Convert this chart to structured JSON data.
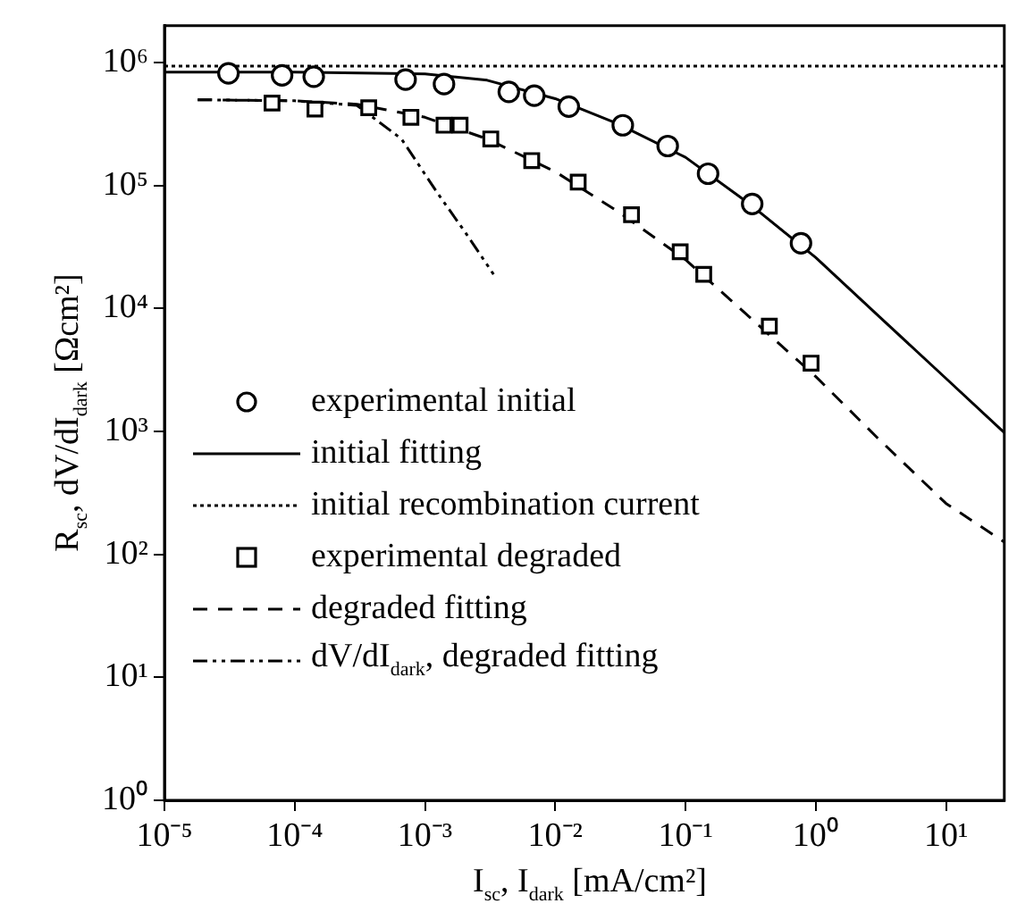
{
  "chart_data": {
    "type": "line",
    "xlabel": "I$_{sc}$, I$_{dark}$ [mA/cm²]",
    "ylabel": "R$_{sc}$, dV/dI$_{dark}$ [Ωcm²]",
    "log": "xy",
    "grid": false,
    "legend": "bottom left",
    "xlim": [
      1e-05,
      28
    ],
    "ylim": [
      1,
      2000000
    ],
    "xticks": [
      {
        "value": 1e-05,
        "label": "10⁻⁵"
      },
      {
        "value": 0.0001,
        "label": "10⁻⁴"
      },
      {
        "value": 0.001,
        "label": "10⁻³"
      },
      {
        "value": 0.01,
        "label": "10⁻²"
      },
      {
        "value": 0.1,
        "label": "10⁻¹"
      },
      {
        "value": 1,
        "label": "10⁰"
      },
      {
        "value": 10,
        "label": "10¹"
      }
    ],
    "yticks": [
      {
        "value": 1,
        "label": "10⁰"
      },
      {
        "value": 10,
        "label": "10¹"
      },
      {
        "value": 100,
        "label": "10²"
      },
      {
        "value": 1000,
        "label": "10³"
      },
      {
        "value": 10000,
        "label": "10⁴"
      },
      {
        "value": 100000,
        "label": "10⁵"
      },
      {
        "value": 1000000,
        "label": "10⁶"
      }
    ],
    "series": [
      {
        "name": "experimental initial",
        "type": "scatter",
        "marker": "circle",
        "color": "#000000",
        "x": [
          3.1e-05,
          8e-05,
          0.00014,
          0.00071,
          0.0014,
          0.0044,
          0.0069,
          0.0127,
          0.033,
          0.073,
          0.149,
          0.325,
          0.77
        ],
        "values": [
          820000,
          790000,
          770000,
          730000,
          670000,
          580000,
          540000,
          440000,
          310000,
          210000,
          125000,
          71000,
          34000
        ]
      },
      {
        "name": "initial fitting",
        "marker": "none",
        "line_style": "solid",
        "color": "#000000",
        "x": [
          1e-05,
          0.0001,
          0.001,
          0.003,
          0.01,
          0.03,
          0.1,
          0.3,
          1,
          3,
          10,
          28
        ],
        "values": [
          840000,
          840000,
          810000,
          720000,
          510000,
          320000,
          170000,
          73000,
          26000,
          8800,
          2700,
          980
        ]
      },
      {
        "name": "initial recombination current",
        "marker": "none",
        "line_style": "dotted",
        "color": "#000000",
        "x": [
          1e-05,
          28
        ],
        "values": [
          940000,
          940000
        ]
      },
      {
        "name": "experimental degraded",
        "type": "scatter",
        "marker": "square",
        "color": "#000000",
        "x": [
          6.7e-05,
          0.000143,
          0.00037,
          0.00078,
          0.0014,
          0.00186,
          0.0032,
          0.0066,
          0.015,
          0.0385,
          0.091,
          0.138,
          0.44,
          0.92
        ],
        "values": [
          470000,
          420000,
          430000,
          360000,
          310000,
          310000,
          240000,
          160000,
          107000,
          58000,
          29000,
          19000,
          7200,
          3600
        ]
      },
      {
        "name": "degraded fitting",
        "marker": "none",
        "line_style": "dashed",
        "color": "#000000",
        "x": [
          1.8e-05,
          0.0001,
          0.0003,
          0.001,
          0.003,
          0.01,
          0.03,
          0.1,
          0.3,
          1,
          3,
          10,
          28
        ],
        "values": [
          500000,
          490000,
          460000,
          360000,
          240000,
          130000,
          62000,
          25000,
          8800,
          2800,
          880,
          260,
          126
        ]
      },
      {
        "name": "dV/dI$_{dark}$, degraded fitting",
        "marker": "none",
        "line_style": "dashdot",
        "color": "#000000",
        "x": [
          1.8e-05,
          0.0001,
          0.0003,
          0.00066,
          0.00123,
          0.00206,
          0.00336
        ],
        "values": [
          500000,
          490000,
          450000,
          240000,
          89000,
          41000,
          19000
        ]
      }
    ]
  }
}
